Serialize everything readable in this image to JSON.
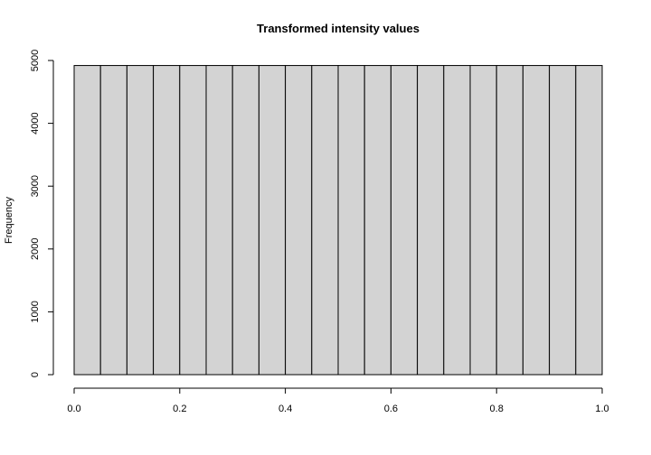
{
  "chart_data": {
    "type": "bar",
    "title": "Transformed intensity values",
    "xlabel": "",
    "ylabel": "Frequency",
    "bin_edges": [
      0.0,
      0.05,
      0.1,
      0.15,
      0.2,
      0.25,
      0.3,
      0.35,
      0.4,
      0.45,
      0.5,
      0.55,
      0.6,
      0.65,
      0.7,
      0.75,
      0.8,
      0.85,
      0.9,
      0.95,
      1.0
    ],
    "values": [
      4920,
      4920,
      4920,
      4920,
      4920,
      4920,
      4920,
      4920,
      4920,
      4920,
      4920,
      4920,
      4920,
      4920,
      4920,
      4920,
      4920,
      4920,
      4920,
      4920
    ],
    "xlim": [
      0,
      1
    ],
    "ylim": [
      0,
      5000
    ],
    "x_ticks": [
      "0.0",
      "0.2",
      "0.4",
      "0.6",
      "0.8",
      "1.0"
    ],
    "y_ticks": [
      "0",
      "1000",
      "2000",
      "3000",
      "4000",
      "5000"
    ],
    "bar_fill": "#d3d3d3",
    "bar_stroke": "#000000",
    "grid": false
  }
}
